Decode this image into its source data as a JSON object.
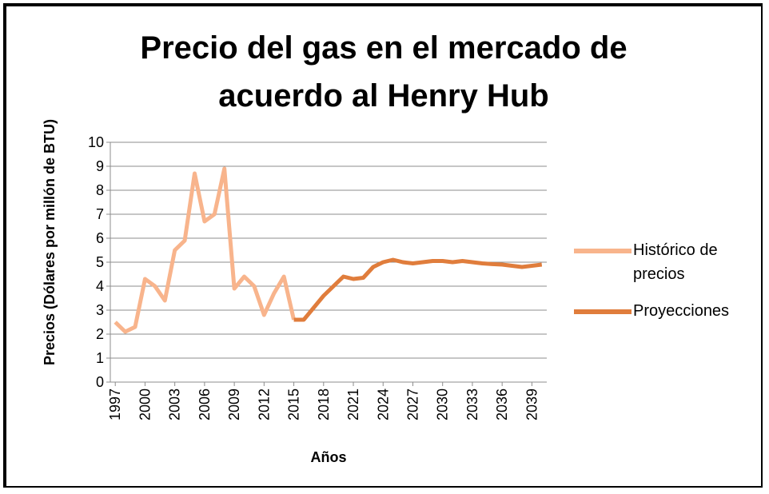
{
  "chart_data": {
    "type": "line",
    "title": "Precio del gas en el mercado de acuerdo al Henry Hub",
    "x_label": "Años",
    "y_label": "Precios (Dólares por millón de BTU)",
    "x": [
      1997,
      1998,
      1999,
      2000,
      2001,
      2002,
      2003,
      2004,
      2005,
      2006,
      2007,
      2008,
      2009,
      2010,
      2011,
      2012,
      2013,
      2014,
      2015,
      2016,
      2017,
      2018,
      2019,
      2020,
      2021,
      2022,
      2023,
      2024,
      2025,
      2026,
      2027,
      2028,
      2029,
      2030,
      2031,
      2032,
      2033,
      2034,
      2035,
      2036,
      2037,
      2038,
      2039,
      2040
    ],
    "xlim": [
      1996.5,
      2040.5
    ],
    "xticks": [
      1997,
      2000,
      2003,
      2006,
      2009,
      2012,
      2015,
      2018,
      2021,
      2024,
      2027,
      2030,
      2033,
      2036,
      2039
    ],
    "ylim": [
      0,
      10
    ],
    "yticks": [
      0,
      1,
      2,
      3,
      4,
      5,
      6,
      7,
      8,
      9,
      10
    ],
    "grid": true,
    "legend": "right",
    "series": [
      {
        "name": "Histórico de precios",
        "color": "#f8b48c",
        "values": [
          2.5,
          2.1,
          2.3,
          4.3,
          4.0,
          3.4,
          5.5,
          5.9,
          8.7,
          6.7,
          7.0,
          8.9,
          3.9,
          4.4,
          4.0,
          2.8,
          3.7,
          4.4,
          2.6,
          null,
          null,
          null,
          null,
          null,
          null,
          null,
          null,
          null,
          null,
          null,
          null,
          null,
          null,
          null,
          null,
          null,
          null,
          null,
          null,
          null,
          null,
          null,
          null,
          null
        ]
      },
      {
        "name": "Proyecciones",
        "color": "#e07d3c",
        "values": [
          null,
          null,
          null,
          null,
          null,
          null,
          null,
          null,
          null,
          null,
          null,
          null,
          null,
          null,
          null,
          null,
          null,
          null,
          2.6,
          2.6,
          3.1,
          3.6,
          4.0,
          4.4,
          4.3,
          4.35,
          4.8,
          5.0,
          5.1,
          5.0,
          4.95,
          5.0,
          5.05,
          5.05,
          5.0,
          5.05,
          5.0,
          4.95,
          4.92,
          4.9,
          4.85,
          4.8,
          4.85,
          4.9
        ]
      }
    ]
  }
}
